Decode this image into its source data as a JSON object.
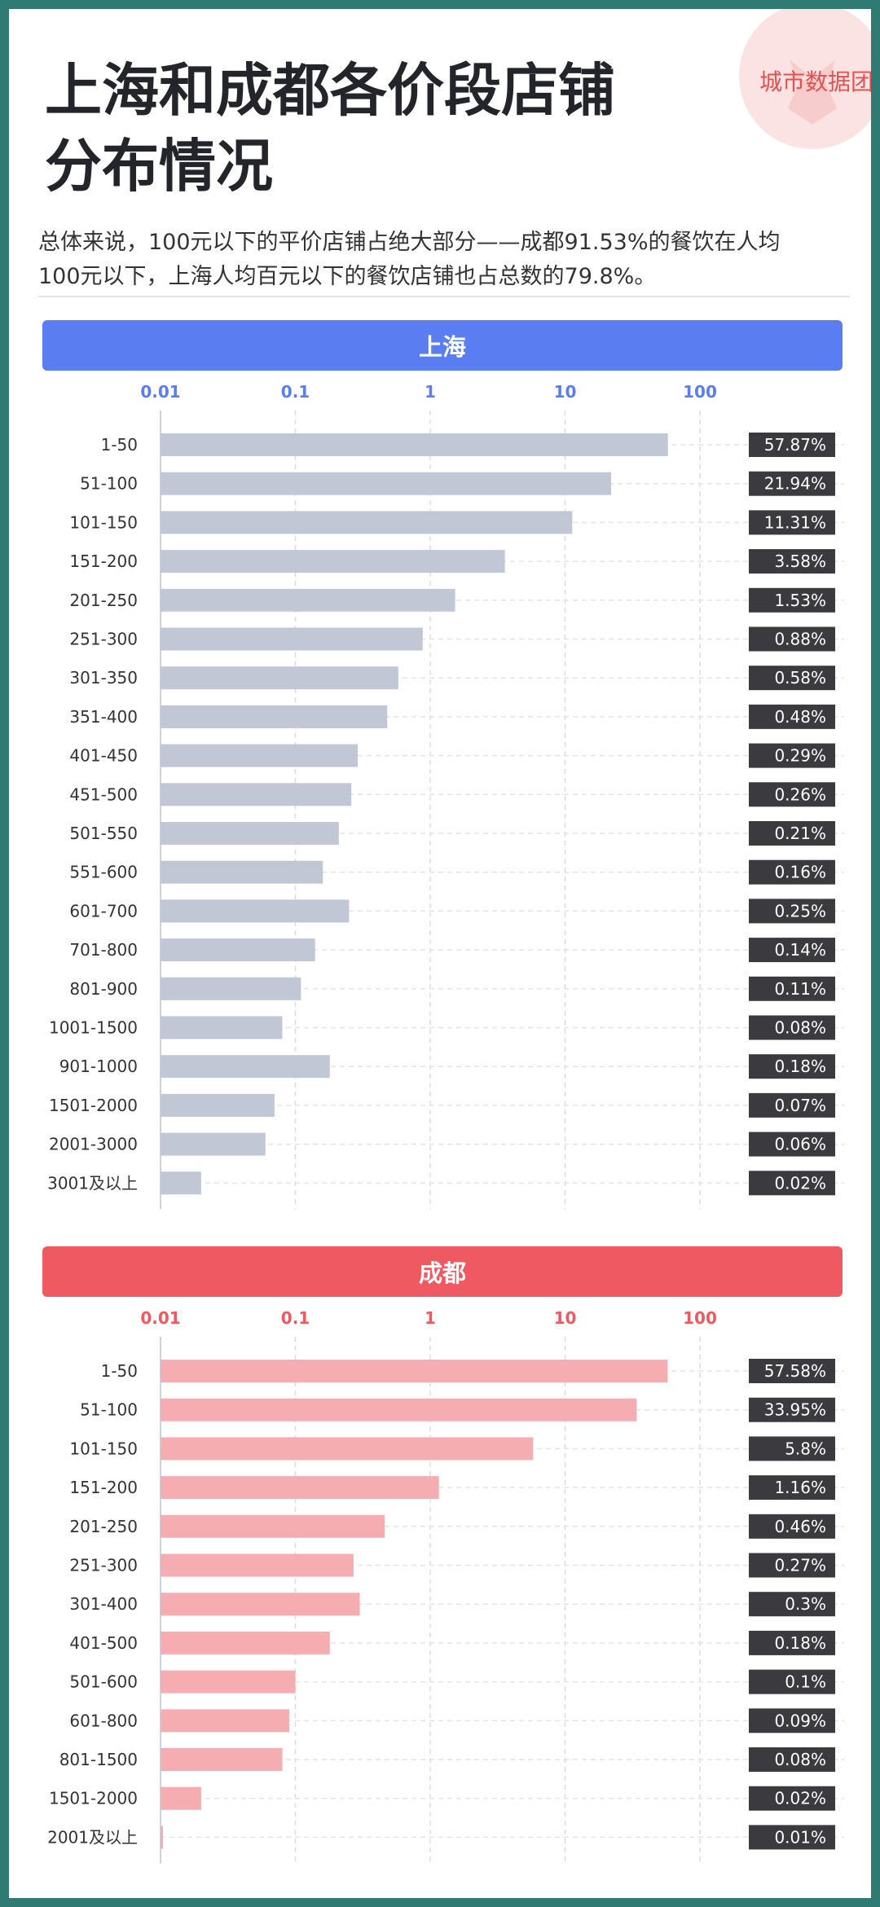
{
  "logo": {
    "text": "城市数据团"
  },
  "title": {
    "line1": "上海和成都各价段店铺",
    "line2": "分布情况"
  },
  "description": {
    "line1": "总体来说，100元以下的平价店铺占绝大部分——成都91.53%的餐饮在人均",
    "line2": "100元以下，上海人均百元以下的餐饮店铺也占总数的79.8%。"
  },
  "colors": {
    "shanghai_header": "#5a7ef2",
    "shanghai_bar": "#c2c7d6",
    "chengdu_header": "#ef5a62",
    "chengdu_bar": "#f6adb1",
    "label_box": "#3a3a3f"
  },
  "chart_data": [
    {
      "type": "bar",
      "orientation": "horizontal",
      "title": "上海",
      "x_scale": "log",
      "xlim": [
        0.01,
        100
      ],
      "x_ticks": [
        "0.01",
        "0.1",
        "1",
        "10",
        "100"
      ],
      "categories": [
        "1-50",
        "51-100",
        "101-150",
        "151-200",
        "201-250",
        "251-300",
        "301-350",
        "351-400",
        "401-450",
        "451-500",
        "501-550",
        "551-600",
        "601-700",
        "701-800",
        "801-900",
        "1001-1500",
        "901-1000",
        "1501-2000",
        "2001-3000",
        "3001及以上"
      ],
      "values": [
        57.87,
        21.94,
        11.31,
        3.58,
        1.53,
        0.88,
        0.58,
        0.48,
        0.29,
        0.26,
        0.21,
        0.16,
        0.25,
        0.14,
        0.11,
        0.08,
        0.18,
        0.07,
        0.06,
        0.02
      ],
      "value_labels": [
        "57.87%",
        "21.94%",
        "11.31%",
        "3.58%",
        "1.53%",
        "0.88%",
        "0.58%",
        "0.48%",
        "0.29%",
        "0.26%",
        "0.21%",
        "0.16%",
        "0.25%",
        "0.14%",
        "0.11%",
        "0.08%",
        "0.18%",
        "0.07%",
        "0.06%",
        "0.02%"
      ],
      "grid": true
    },
    {
      "type": "bar",
      "orientation": "horizontal",
      "title": "成都",
      "x_scale": "log",
      "xlim": [
        0.01,
        100
      ],
      "x_ticks": [
        "0.01",
        "0.1",
        "1",
        "10",
        "100"
      ],
      "categories": [
        "1-50",
        "51-100",
        "101-150",
        "151-200",
        "201-250",
        "251-300",
        "301-400",
        "401-500",
        "501-600",
        "601-800",
        "801-1500",
        "1501-2000",
        "2001及以上"
      ],
      "values": [
        57.58,
        33.95,
        5.8,
        1.16,
        0.46,
        0.27,
        0.3,
        0.18,
        0.1,
        0.09,
        0.08,
        0.02,
        0.01
      ],
      "value_labels": [
        "57.58%",
        "33.95%",
        "5.8%",
        "1.16%",
        "0.46%",
        "0.27%",
        "0.3%",
        "0.18%",
        "0.1%",
        "0.09%",
        "0.08%",
        "0.02%",
        "0.01%"
      ],
      "grid": true
    }
  ]
}
